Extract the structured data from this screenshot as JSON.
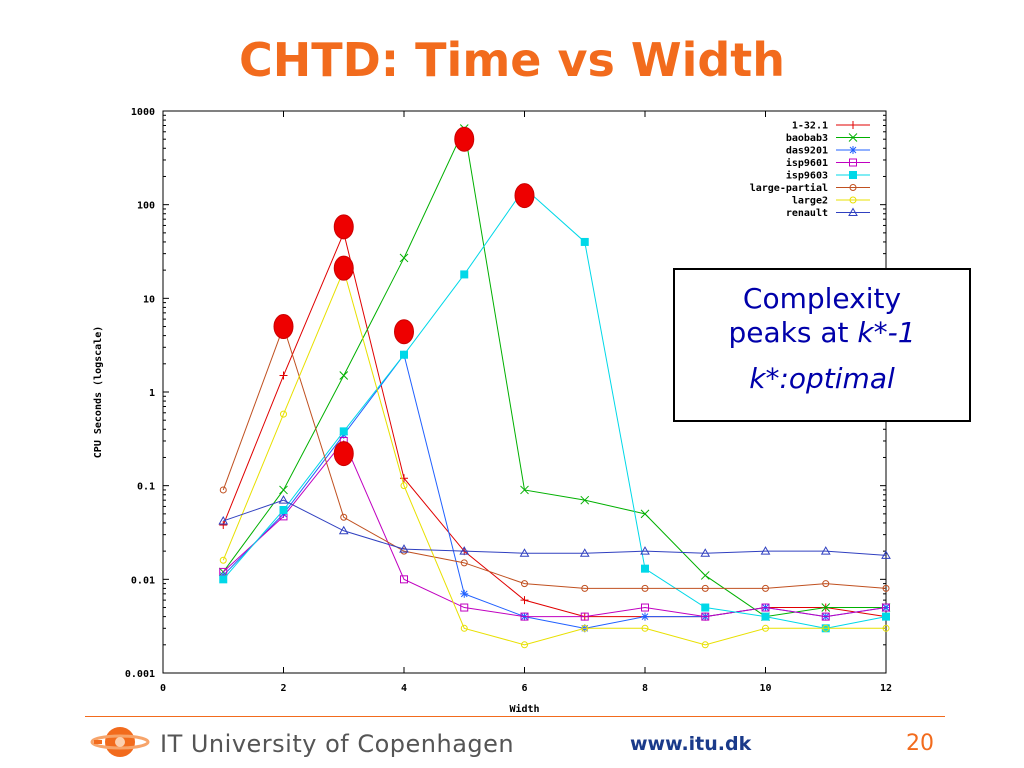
{
  "slide": {
    "title": "CHTD: Time vs Width",
    "callout": {
      "line1": "Complexity",
      "line2_prefix": "peaks at ",
      "line2_italic": "k*-1",
      "line3": "k*:optimal"
    },
    "footer": {
      "org": "IT University of Copenhagen",
      "url": "www.itu.dk",
      "page": "20"
    },
    "colors": {
      "accent": "#f26b1d",
      "callout_text": "#0000aa",
      "marker": "#ee0000"
    }
  },
  "chart_data": {
    "type": "line",
    "xlabel": "Width",
    "ylabel": "CPU Seconds (logscale)",
    "xlim": [
      0,
      12
    ],
    "ylim": [
      0.001,
      1000
    ],
    "yscale": "log",
    "xticks": [
      "0",
      "2",
      "4",
      "6",
      "8",
      "10",
      "12"
    ],
    "yticks": [
      "0.001",
      "0.01",
      "0.1",
      "1",
      "10",
      "100",
      "1000"
    ],
    "legend_position": "top-right",
    "series": [
      {
        "name": "1-32.1",
        "color": "#e00000",
        "marker": "plus",
        "x": [
          1,
          2,
          3,
          4,
          5,
          6,
          7,
          8,
          9,
          10,
          11,
          12
        ],
        "y": [
          0.038,
          1.5,
          50,
          0.12,
          0.02,
          0.006,
          0.004,
          0.004,
          0.004,
          0.005,
          0.005,
          0.004
        ]
      },
      {
        "name": "baobab3",
        "color": "#00b000",
        "marker": "x",
        "x": [
          1,
          2,
          3,
          4,
          5,
          6,
          7,
          8,
          9,
          10,
          11,
          12
        ],
        "y": [
          0.012,
          0.09,
          1.5,
          27,
          650,
          0.09,
          0.07,
          0.05,
          0.011,
          0.004,
          0.005,
          0.005
        ]
      },
      {
        "name": "das9201",
        "color": "#2060ff",
        "marker": "star",
        "x": [
          1,
          2,
          3,
          4,
          5,
          6,
          7,
          8,
          9,
          10,
          11,
          12
        ],
        "y": [
          0.011,
          0.05,
          0.35,
          2.5,
          0.007,
          0.004,
          0.003,
          0.004,
          0.004,
          0.005,
          0.004,
          0.005
        ]
      },
      {
        "name": "isp9601",
        "color": "#c000c0",
        "marker": "square-open",
        "x": [
          1,
          2,
          3,
          4,
          5,
          6,
          7,
          8,
          9,
          10,
          11,
          12
        ],
        "y": [
          0.012,
          0.047,
          0.3,
          0.01,
          0.005,
          0.004,
          0.004,
          0.005,
          0.004,
          0.005,
          0.004,
          0.005
        ]
      },
      {
        "name": "isp9603",
        "color": "#00d8e8",
        "marker": "square-filled",
        "x": [
          1,
          2,
          3,
          4,
          5,
          6,
          7,
          8,
          9,
          10,
          11,
          12
        ],
        "y": [
          0.01,
          0.055,
          0.38,
          2.5,
          18,
          150,
          40,
          0.013,
          0.005,
          0.004,
          0.003,
          0.004
        ]
      },
      {
        "name": "large-partial",
        "color": "#c05020",
        "marker": "circle-open",
        "x": [
          1,
          2,
          3,
          4,
          5,
          6,
          7,
          8,
          9,
          10,
          11,
          12
        ],
        "y": [
          0.09,
          5,
          0.046,
          0.02,
          0.015,
          0.009,
          0.008,
          0.008,
          0.008,
          0.008,
          0.009,
          0.008
        ]
      },
      {
        "name": "large2",
        "color": "#e8e000",
        "marker": "circle-open",
        "x": [
          1,
          2,
          3,
          4,
          5,
          6,
          7,
          8,
          9,
          10,
          11,
          12
        ],
        "y": [
          0.016,
          0.58,
          20,
          0.1,
          0.003,
          0.002,
          0.003,
          0.003,
          0.002,
          0.003,
          0.003,
          0.003
        ]
      },
      {
        "name": "renault",
        "color": "#3040c0",
        "marker": "triangle-open",
        "x": [
          1,
          2,
          3,
          4,
          5,
          6,
          7,
          8,
          9,
          10,
          11,
          12
        ],
        "y": [
          0.042,
          0.07,
          0.033,
          0.021,
          0.02,
          0.019,
          0.019,
          0.02,
          0.019,
          0.02,
          0.02,
          0.018
        ]
      }
    ],
    "peak_markers": [
      {
        "x": 2,
        "y": 5
      },
      {
        "x": 3,
        "y": 58
      },
      {
        "x": 3,
        "y": 21
      },
      {
        "x": 3,
        "y": 0.22
      },
      {
        "x": 4,
        "y": 4.4
      },
      {
        "x": 5,
        "y": 500
      },
      {
        "x": 6,
        "y": 125
      }
    ]
  }
}
